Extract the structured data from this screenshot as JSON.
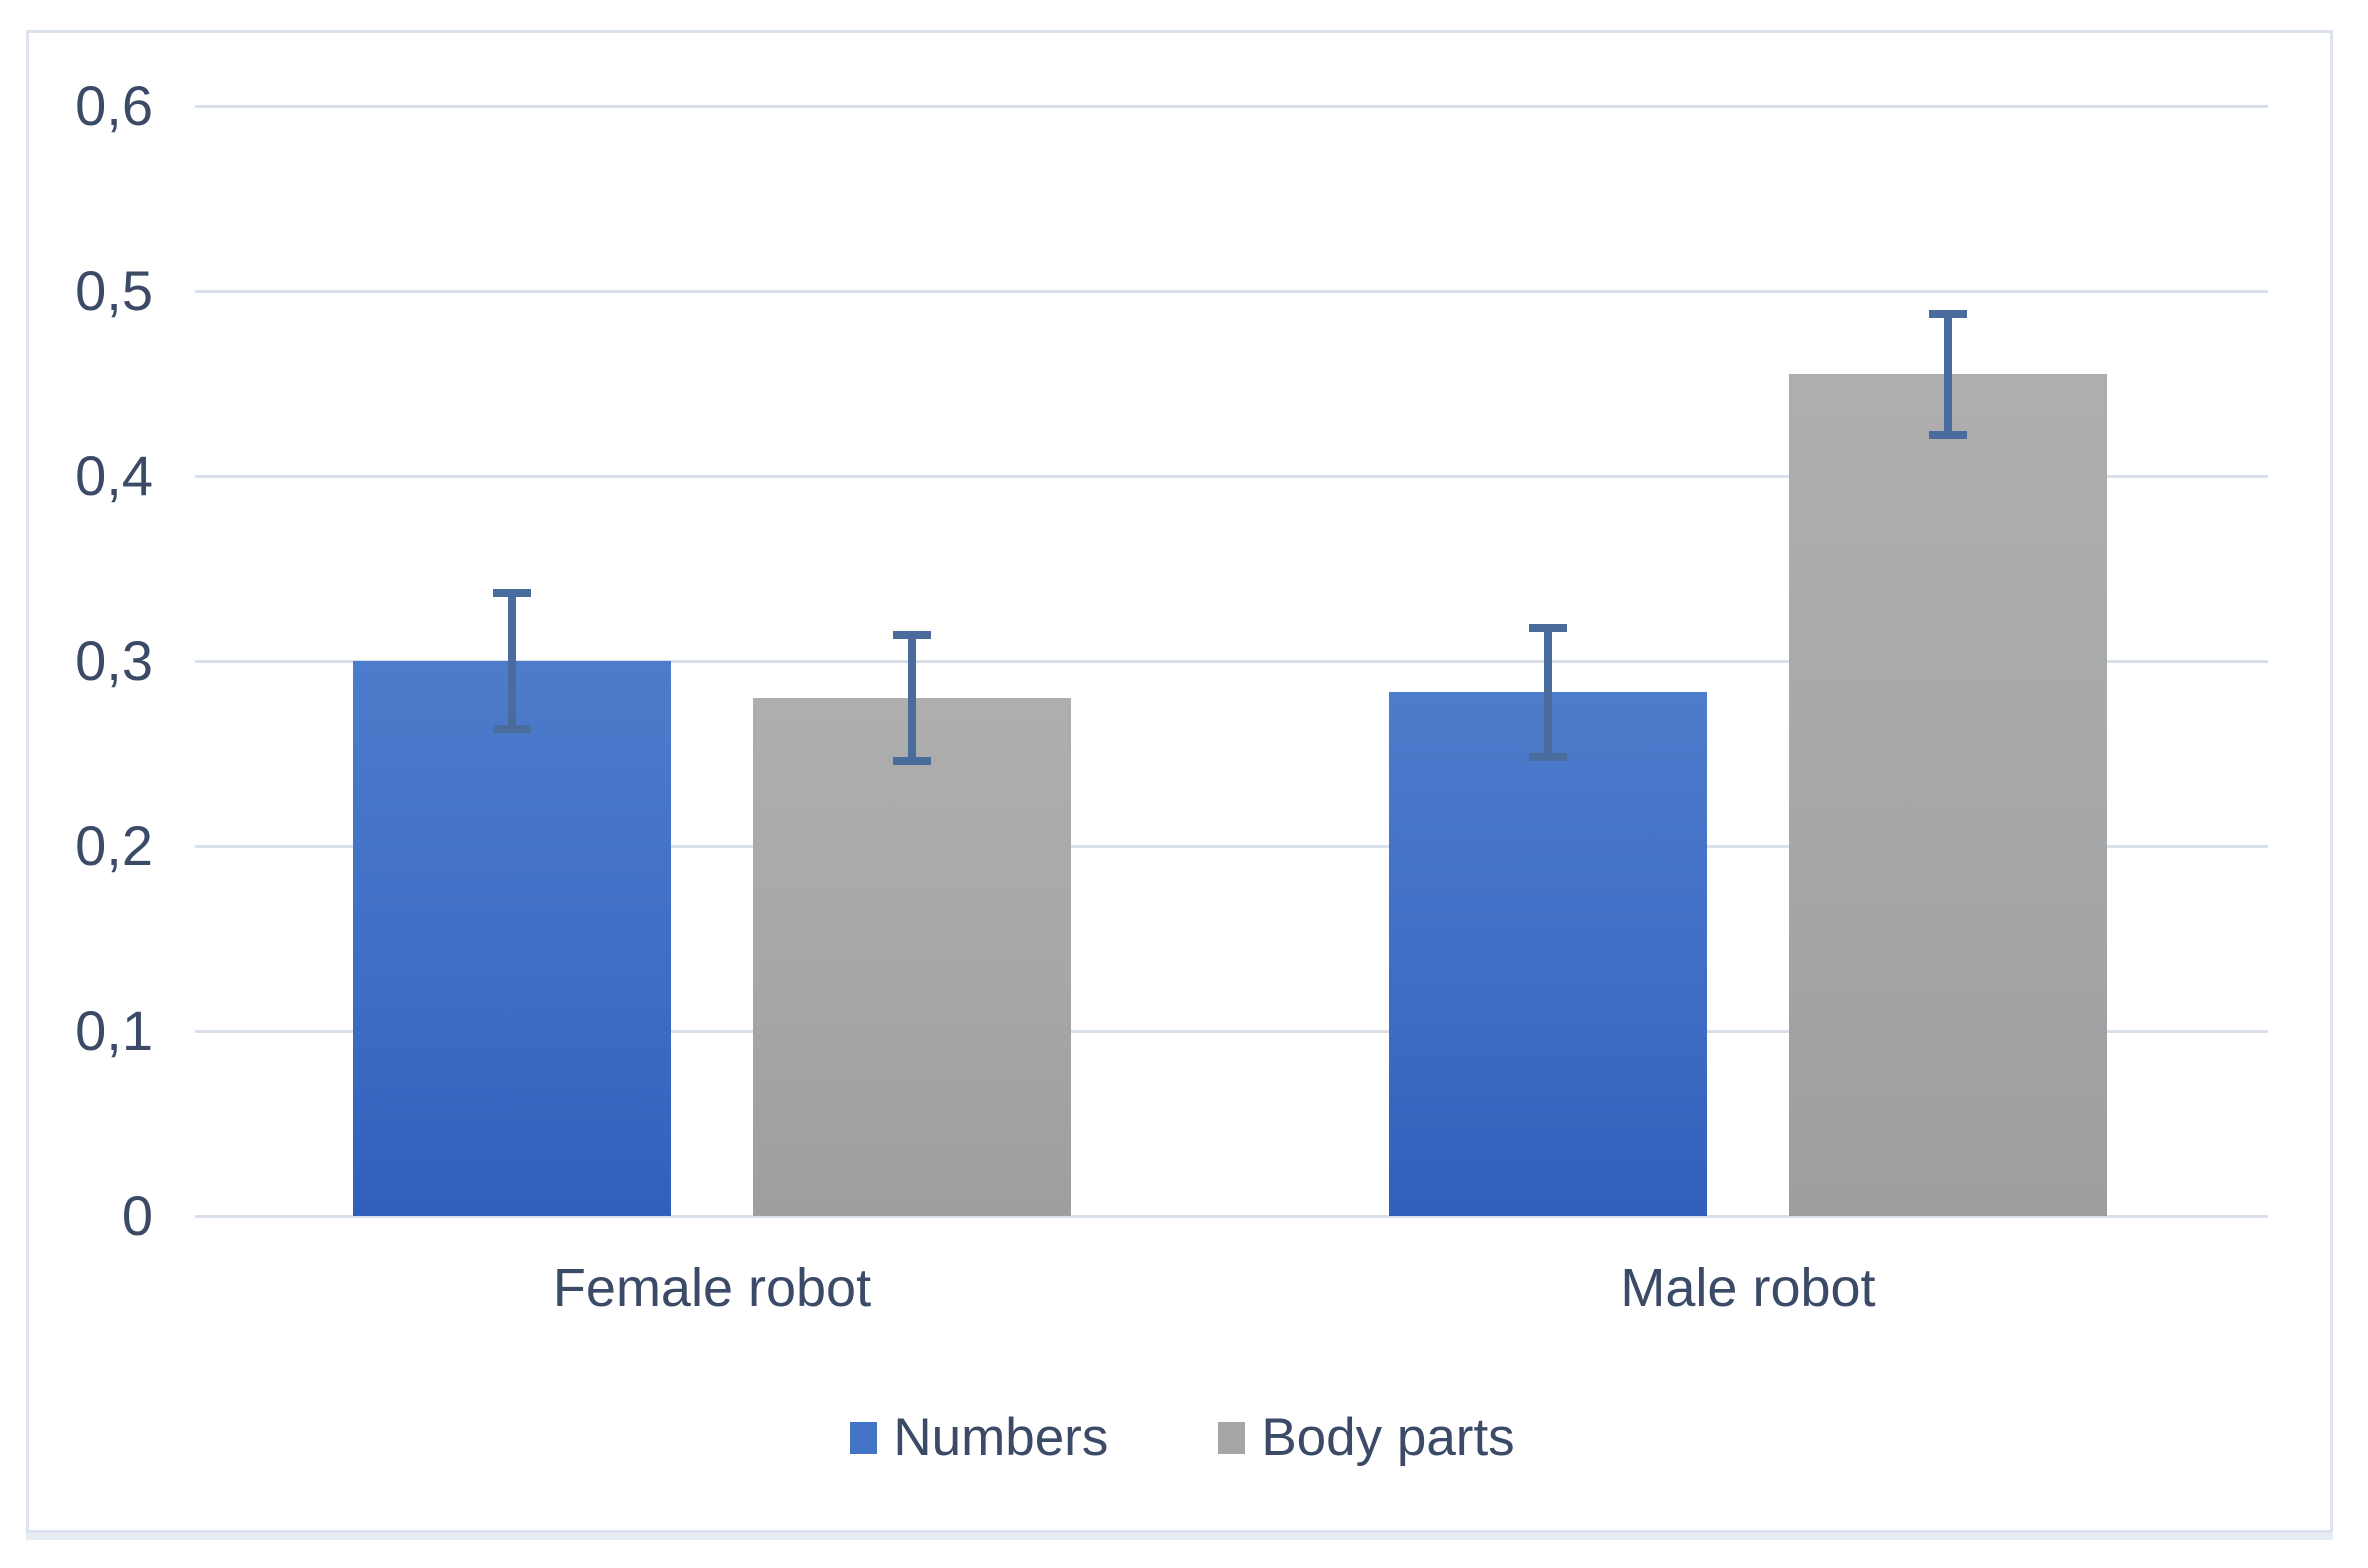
{
  "chart_data": {
    "type": "bar",
    "title": "",
    "xlabel": "",
    "ylabel": "",
    "categories": [
      "Female robot",
      "Male robot"
    ],
    "series": [
      {
        "name": "Numbers",
        "color": "#4472C4",
        "values": [
          0.3,
          0.283
        ],
        "errors": [
          0.039,
          0.037
        ]
      },
      {
        "name": "Body parts",
        "color": "#A6A6A6",
        "values": [
          0.28,
          0.455
        ],
        "errors": [
          0.036,
          0.035
        ]
      }
    ],
    "ylim": [
      0,
      0.6
    ],
    "ytick_step": 0.1,
    "ytick_labels": [
      "0",
      "0,1",
      "0,2",
      "0,3",
      "0,4",
      "0,5",
      "0,6"
    ],
    "decimal_separator": ",",
    "grid": true,
    "legend_position": "bottom",
    "error_bar_color": "#4A6C9D",
    "gridline_color": "#D9E0E9",
    "text_color": "#3B4A66"
  }
}
